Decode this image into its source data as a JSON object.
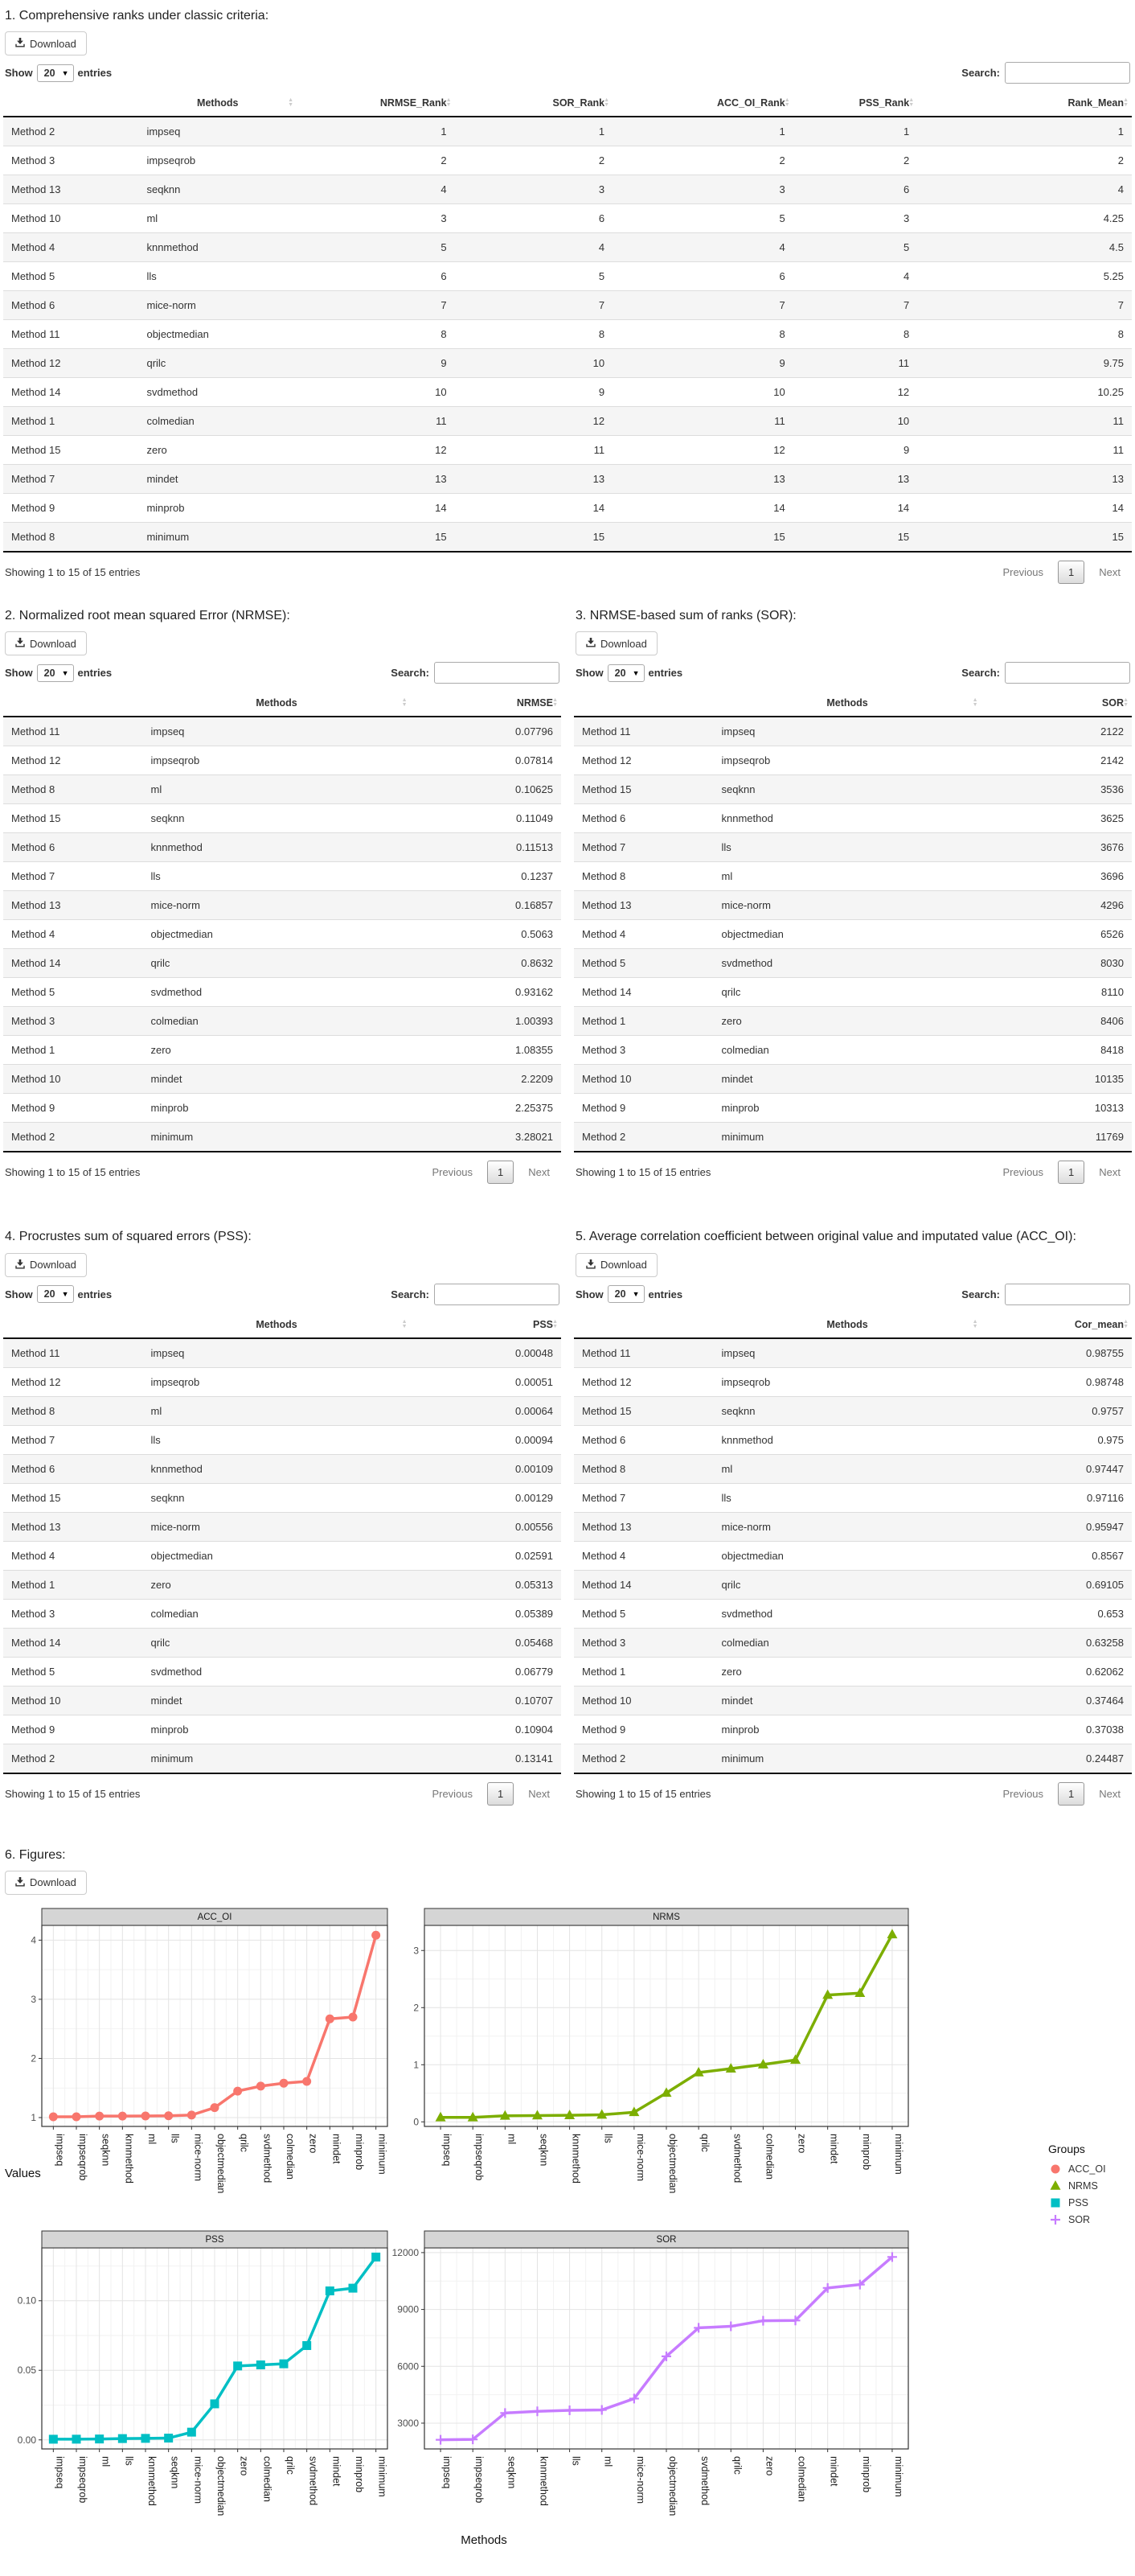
{
  "ui": {
    "download": "Download",
    "show": "Show",
    "page_size": "20",
    "entries": "entries",
    "search": "Search:",
    "search_value": "",
    "info": "Showing 1 to 15 of 15 entries",
    "previous": "Previous",
    "page": "1",
    "next": "Next"
  },
  "section1": {
    "title": "1. Comprehensive ranks under classic criteria:"
  },
  "section2": {
    "title": "2. Normalized root mean squared Error (NRMSE):"
  },
  "section3": {
    "title": "3. NRMSE-based sum of ranks (SOR):"
  },
  "section4": {
    "title": "4. Procrustes sum of squared errors (PSS):"
  },
  "section5": {
    "title": "5. Average correlation coefficient between original value and imputated value (ACC_OI):"
  },
  "section6": {
    "title": "6. Figures:"
  },
  "tables": {
    "t1": {
      "headers": [
        "",
        "Methods",
        "NRMSE_Rank",
        "SOR_Rank",
        "ACC_OI_Rank",
        "PSS_Rank",
        "Rank_Mean"
      ],
      "rows": [
        [
          "Method 2",
          "impseq",
          "1",
          "1",
          "1",
          "1",
          "1"
        ],
        [
          "Method 3",
          "impseqrob",
          "2",
          "2",
          "2",
          "2",
          "2"
        ],
        [
          "Method 13",
          "seqknn",
          "4",
          "3",
          "3",
          "6",
          "4"
        ],
        [
          "Method 10",
          "ml",
          "3",
          "6",
          "5",
          "3",
          "4.25"
        ],
        [
          "Method 4",
          "knnmethod",
          "5",
          "4",
          "4",
          "5",
          "4.5"
        ],
        [
          "Method 5",
          "lls",
          "6",
          "5",
          "6",
          "4",
          "5.25"
        ],
        [
          "Method 6",
          "mice-norm",
          "7",
          "7",
          "7",
          "7",
          "7"
        ],
        [
          "Method 11",
          "objectmedian",
          "8",
          "8",
          "8",
          "8",
          "8"
        ],
        [
          "Method 12",
          "qrilc",
          "9",
          "10",
          "9",
          "11",
          "9.75"
        ],
        [
          "Method 14",
          "svdmethod",
          "10",
          "9",
          "10",
          "12",
          "10.25"
        ],
        [
          "Method 1",
          "colmedian",
          "11",
          "12",
          "11",
          "10",
          "11"
        ],
        [
          "Method 15",
          "zero",
          "12",
          "11",
          "12",
          "9",
          "11"
        ],
        [
          "Method 7",
          "mindet",
          "13",
          "13",
          "13",
          "13",
          "13"
        ],
        [
          "Method 9",
          "minprob",
          "14",
          "14",
          "14",
          "14",
          "14"
        ],
        [
          "Method 8",
          "minimum",
          "15",
          "15",
          "15",
          "15",
          "15"
        ]
      ]
    },
    "t2": {
      "headers": [
        "",
        "Methods",
        "NRMSE"
      ],
      "rows": [
        [
          "Method 11",
          "impseq",
          "0.07796"
        ],
        [
          "Method 12",
          "impseqrob",
          "0.07814"
        ],
        [
          "Method 8",
          "ml",
          "0.10625"
        ],
        [
          "Method 15",
          "seqknn",
          "0.11049"
        ],
        [
          "Method 6",
          "knnmethod",
          "0.11513"
        ],
        [
          "Method 7",
          "lls",
          "0.1237"
        ],
        [
          "Method 13",
          "mice-norm",
          "0.16857"
        ],
        [
          "Method 4",
          "objectmedian",
          "0.5063"
        ],
        [
          "Method 14",
          "qrilc",
          "0.8632"
        ],
        [
          "Method 5",
          "svdmethod",
          "0.93162"
        ],
        [
          "Method 3",
          "colmedian",
          "1.00393"
        ],
        [
          "Method 1",
          "zero",
          "1.08355"
        ],
        [
          "Method 10",
          "mindet",
          "2.2209"
        ],
        [
          "Method 9",
          "minprob",
          "2.25375"
        ],
        [
          "Method 2",
          "minimum",
          "3.28021"
        ]
      ]
    },
    "t3": {
      "headers": [
        "",
        "Methods",
        "SOR"
      ],
      "rows": [
        [
          "Method 11",
          "impseq",
          "2122"
        ],
        [
          "Method 12",
          "impseqrob",
          "2142"
        ],
        [
          "Method 15",
          "seqknn",
          "3536"
        ],
        [
          "Method 6",
          "knnmethod",
          "3625"
        ],
        [
          "Method 7",
          "lls",
          "3676"
        ],
        [
          "Method 8",
          "ml",
          "3696"
        ],
        [
          "Method 13",
          "mice-norm",
          "4296"
        ],
        [
          "Method 4",
          "objectmedian",
          "6526"
        ],
        [
          "Method 5",
          "svdmethod",
          "8030"
        ],
        [
          "Method 14",
          "qrilc",
          "8110"
        ],
        [
          "Method 1",
          "zero",
          "8406"
        ],
        [
          "Method 3",
          "colmedian",
          "8418"
        ],
        [
          "Method 10",
          "mindet",
          "10135"
        ],
        [
          "Method 9",
          "minprob",
          "10313"
        ],
        [
          "Method 2",
          "minimum",
          "11769"
        ]
      ]
    },
    "t4": {
      "headers": [
        "",
        "Methods",
        "PSS"
      ],
      "rows": [
        [
          "Method 11",
          "impseq",
          "0.00048"
        ],
        [
          "Method 12",
          "impseqrob",
          "0.00051"
        ],
        [
          "Method 8",
          "ml",
          "0.00064"
        ],
        [
          "Method 7",
          "lls",
          "0.00094"
        ],
        [
          "Method 6",
          "knnmethod",
          "0.00109"
        ],
        [
          "Method 15",
          "seqknn",
          "0.00129"
        ],
        [
          "Method 13",
          "mice-norm",
          "0.00556"
        ],
        [
          "Method 4",
          "objectmedian",
          "0.02591"
        ],
        [
          "Method 1",
          "zero",
          "0.05313"
        ],
        [
          "Method 3",
          "colmedian",
          "0.05389"
        ],
        [
          "Method 14",
          "qrilc",
          "0.05468"
        ],
        [
          "Method 5",
          "svdmethod",
          "0.06779"
        ],
        [
          "Method 10",
          "mindet",
          "0.10707"
        ],
        [
          "Method 9",
          "minprob",
          "0.10904"
        ],
        [
          "Method 2",
          "minimum",
          "0.13141"
        ]
      ]
    },
    "t5": {
      "headers": [
        "",
        "Methods",
        "Cor_mean"
      ],
      "rows": [
        [
          "Method 11",
          "impseq",
          "0.98755"
        ],
        [
          "Method 12",
          "impseqrob",
          "0.98748"
        ],
        [
          "Method 15",
          "seqknn",
          "0.9757"
        ],
        [
          "Method 6",
          "knnmethod",
          "0.975"
        ],
        [
          "Method 8",
          "ml",
          "0.97447"
        ],
        [
          "Method 7",
          "lls",
          "0.97116"
        ],
        [
          "Method 13",
          "mice-norm",
          "0.95947"
        ],
        [
          "Method 4",
          "objectmedian",
          "0.8567"
        ],
        [
          "Method 14",
          "qrilc",
          "0.69105"
        ],
        [
          "Method 5",
          "svdmethod",
          "0.653"
        ],
        [
          "Method 3",
          "colmedian",
          "0.63258"
        ],
        [
          "Method 1",
          "zero",
          "0.62062"
        ],
        [
          "Method 10",
          "mindet",
          "0.37464"
        ],
        [
          "Method 9",
          "minprob",
          "0.37038"
        ],
        [
          "Method 2",
          "minimum",
          "0.24487"
        ]
      ]
    }
  },
  "figures": {
    "ylabel": "Values",
    "xlabel": "Methods",
    "legend_title": "Groups",
    "legend": [
      {
        "label": "ACC_OI",
        "color": "#F8766D",
        "marker": "circle"
      },
      {
        "label": "NRMS",
        "color": "#7CAE00",
        "marker": "triangle"
      },
      {
        "label": "PSS",
        "color": "#00BFC4",
        "marker": "square"
      },
      {
        "label": "SOR",
        "color": "#C77CFF",
        "marker": "plus"
      }
    ],
    "chart_data": [
      {
        "type": "line",
        "title": "ACC_OI",
        "color": "#F8766D",
        "marker": "circle",
        "categories": [
          "impseq",
          "impseqrob",
          "seqknn",
          "knnmethod",
          "ml",
          "lls",
          "mice-norm",
          "objectmedian",
          "qrilc",
          "svdmethod",
          "colmedian",
          "zero",
          "mindet",
          "minprob",
          "minimum"
        ],
        "values": [
          1.0126,
          1.0127,
          1.0249,
          1.0256,
          1.0262,
          1.0297,
          1.0422,
          1.1673,
          1.4471,
          1.5314,
          1.5808,
          1.6113,
          2.6692,
          2.7,
          4.0838
        ],
        "yticks": [
          1,
          2,
          3,
          4
        ],
        "ytick_labels": [
          "1",
          "2",
          "3",
          "4"
        ],
        "ylim": [
          0.85,
          4.25
        ],
        "grid": true
      },
      {
        "type": "line",
        "title": "NRMS",
        "color": "#7CAE00",
        "marker": "triangle",
        "categories": [
          "impseq",
          "impseqrob",
          "ml",
          "seqknn",
          "knnmethod",
          "lls",
          "mice-norm",
          "objectmedian",
          "qrilc",
          "svdmethod",
          "colmedian",
          "zero",
          "mindet",
          "minprob",
          "minimum"
        ],
        "values": [
          0.07796,
          0.07814,
          0.10625,
          0.11049,
          0.11513,
          0.1237,
          0.16857,
          0.5063,
          0.8632,
          0.93162,
          1.00393,
          1.08355,
          2.2209,
          2.25375,
          3.28021
        ],
        "yticks": [
          0,
          1,
          2,
          3
        ],
        "ytick_labels": [
          "0",
          "1",
          "2",
          "3"
        ],
        "ylim": [
          -0.08,
          3.44
        ],
        "grid": true
      },
      {
        "type": "line",
        "title": "PSS",
        "color": "#00BFC4",
        "marker": "square",
        "categories": [
          "impseq",
          "impseqrob",
          "ml",
          "lls",
          "knnmethod",
          "seqknn",
          "mice-norm",
          "objectmedian",
          "zero",
          "colmedian",
          "qrilc",
          "svdmethod",
          "mindet",
          "minprob",
          "minimum"
        ],
        "values": [
          0.00048,
          0.00051,
          0.00064,
          0.00094,
          0.00109,
          0.00129,
          0.00556,
          0.02591,
          0.05313,
          0.05389,
          0.05468,
          0.06779,
          0.10707,
          0.10904,
          0.13141
        ],
        "yticks": [
          0,
          0.05,
          0.1
        ],
        "ytick_labels": [
          "0.00",
          "0.05",
          "0.10"
        ],
        "ylim": [
          -0.0065,
          0.138
        ],
        "grid": true
      },
      {
        "type": "line",
        "title": "SOR",
        "color": "#C77CFF",
        "marker": "plus",
        "categories": [
          "impseq",
          "impseqrob",
          "seqknn",
          "knnmethod",
          "lls",
          "ml",
          "mice-norm",
          "objectmedian",
          "svdmethod",
          "qrilc",
          "zero",
          "colmedian",
          "mindet",
          "minprob",
          "minimum"
        ],
        "values": [
          2122,
          2142,
          3536,
          3625,
          3676,
          3696,
          4296,
          6526,
          8030,
          8110,
          8406,
          8418,
          10135,
          10313,
          11769
        ],
        "yticks": [
          3000,
          6000,
          9000,
          12000
        ],
        "ytick_labels": [
          "3000",
          "6000",
          "9000",
          "12000"
        ],
        "ylim": [
          1640,
          12250
        ],
        "grid": true
      }
    ]
  }
}
